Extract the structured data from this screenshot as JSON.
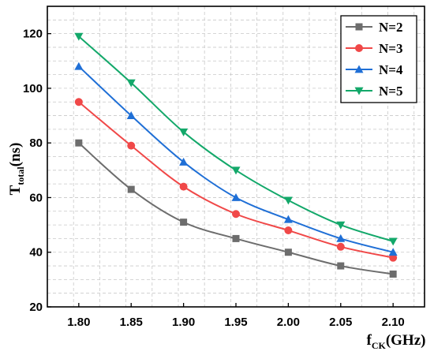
{
  "chart_data": {
    "type": "line",
    "x": [
      1.8,
      1.85,
      1.9,
      1.95,
      2.0,
      2.05,
      2.1
    ],
    "x_tick_labels": [
      "1.80",
      "1.85",
      "1.90",
      "1.95",
      "2.00",
      "2.05",
      "2.10"
    ],
    "y_ticks": [
      20,
      40,
      60,
      80,
      100,
      120
    ],
    "y_tick_labels": [
      "20",
      "40",
      "60",
      "80",
      "100",
      "120"
    ],
    "xlim": [
      1.77,
      2.13
    ],
    "ylim": [
      20,
      130
    ],
    "xlabel": {
      "main": "f",
      "sub": "CK",
      "tail": "(GHz)"
    },
    "ylabel": {
      "main": "T",
      "sub": "total",
      "tail": "(ns)"
    },
    "grid": true,
    "legend_position": "top-right",
    "series": [
      {
        "name": "N=2",
        "color": "#6d6d6d",
        "marker": "square",
        "values": [
          80,
          63,
          51,
          45,
          40,
          35,
          32
        ]
      },
      {
        "name": "N=3",
        "color": "#f04848",
        "marker": "circle",
        "values": [
          95,
          79,
          64,
          54,
          48,
          42,
          38
        ]
      },
      {
        "name": "N=4",
        "color": "#1f6fd6",
        "marker": "triangle-up",
        "values": [
          108,
          90,
          73,
          60,
          52,
          45,
          40
        ]
      },
      {
        "name": "N=5",
        "color": "#13a86a",
        "marker": "triangle-down",
        "values": [
          119,
          102,
          84,
          70,
          59,
          50,
          44
        ]
      }
    ]
  }
}
